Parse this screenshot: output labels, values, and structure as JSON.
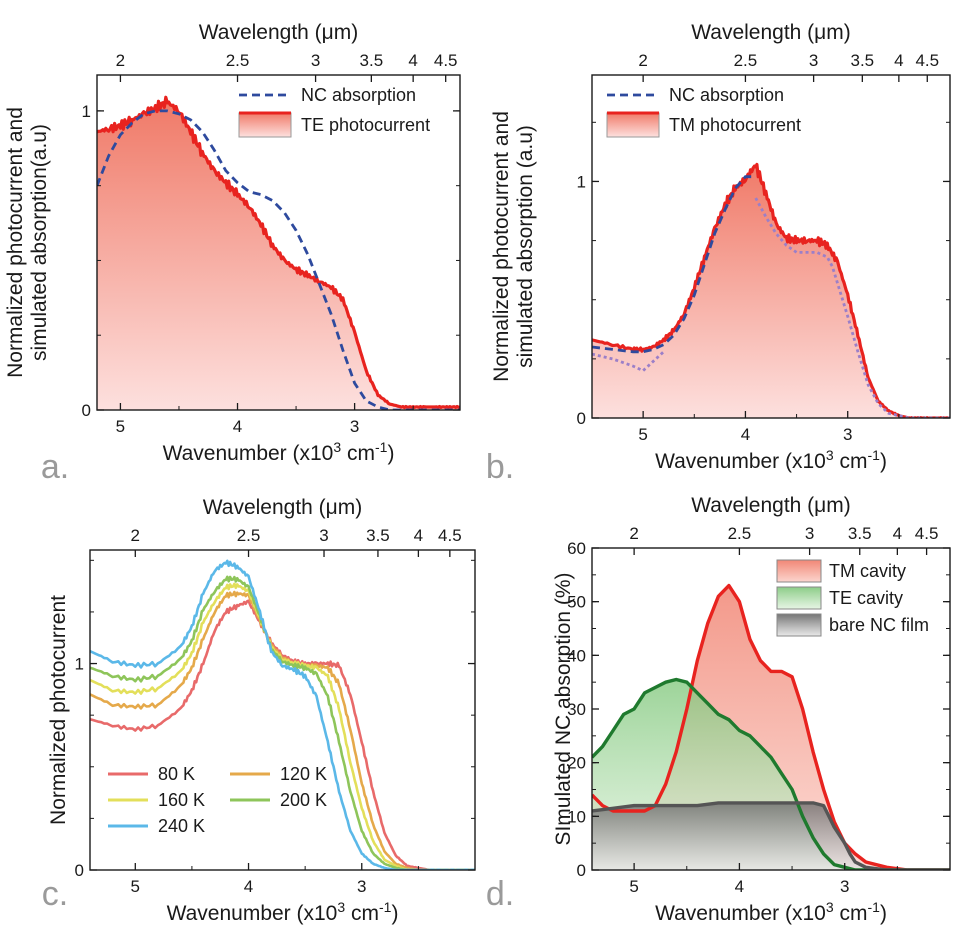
{
  "panel_labels": [
    "a.",
    "b.",
    "c.",
    "d."
  ],
  "chart_data": [
    {
      "id": "a",
      "type": "area",
      "title": "",
      "xlabel": "Wavenumber (x10^3 cm^-1)",
      "xlabel_main": "Wavenumber (x10",
      "xlabel_sup1": "3",
      "xlabel_mid": " cm",
      "xlabel_sup2": "-1",
      "xlabel_end": ")",
      "x2label": "Wavelength (μm)",
      "ylabel_lines": [
        "Normalized photocurrent and",
        "simulated absorption(a.u)"
      ],
      "xlim": [
        5.2,
        2.1
      ],
      "x_reversed": true,
      "ylim": [
        0,
        1.12
      ],
      "x_ticks": [
        5,
        4,
        3
      ],
      "x_tick_labels": [
        "5",
        "4",
        "3"
      ],
      "x2_ticks_um": [
        2,
        2.5,
        3,
        3.5,
        4,
        4.5
      ],
      "x2_tick_labels": [
        "2",
        "2.5",
        "3",
        "3.5",
        "4",
        "4.5"
      ],
      "y_ticks": [
        0,
        1
      ],
      "y_tick_labels": [
        "0",
        "1"
      ],
      "legend_position": "top-right",
      "series": [
        {
          "name": "NC absorption",
          "style": "dashed",
          "color": "#2e4a9e",
          "x": [
            5.2,
            5.1,
            5.0,
            4.9,
            4.8,
            4.7,
            4.6,
            4.5,
            4.4,
            4.3,
            4.2,
            4.1,
            4.0,
            3.9,
            3.8,
            3.7,
            3.6,
            3.5,
            3.4,
            3.3,
            3.2,
            3.1,
            3.0,
            2.9,
            2.8,
            2.7,
            2.6,
            2.5,
            2.4,
            2.3,
            2.2,
            2.1
          ],
          "y": [
            0.75,
            0.85,
            0.92,
            0.96,
            0.99,
            1.0,
            1.0,
            0.99,
            0.97,
            0.93,
            0.87,
            0.8,
            0.76,
            0.73,
            0.72,
            0.7,
            0.66,
            0.6,
            0.52,
            0.42,
            0.32,
            0.2,
            0.09,
            0.03,
            0.01,
            0.0,
            0.0,
            0.0,
            0.0,
            0.0,
            0.0,
            0.0
          ]
        },
        {
          "name": "TE photocurrent",
          "style": "filled",
          "color": "#e8231f",
          "x": [
            5.2,
            5.1,
            5.0,
            4.9,
            4.8,
            4.7,
            4.6,
            4.5,
            4.4,
            4.3,
            4.2,
            4.1,
            4.0,
            3.9,
            3.8,
            3.7,
            3.6,
            3.5,
            3.4,
            3.3,
            3.2,
            3.1,
            3.0,
            2.9,
            2.8,
            2.7,
            2.6,
            2.5,
            2.4,
            2.3,
            2.2,
            2.1
          ],
          "y": [
            0.93,
            0.94,
            0.95,
            0.97,
            0.99,
            1.01,
            1.03,
            1.0,
            0.93,
            0.86,
            0.8,
            0.76,
            0.72,
            0.68,
            0.62,
            0.55,
            0.5,
            0.47,
            0.45,
            0.43,
            0.41,
            0.37,
            0.26,
            0.13,
            0.05,
            0.02,
            0.01,
            0.01,
            0.01,
            0.01,
            0.01,
            0.01
          ]
        }
      ],
      "fill_color": "#f08a7a"
    },
    {
      "id": "b",
      "type": "area",
      "title": "",
      "xlabel_main": "Wavenumber (x10",
      "xlabel_sup1": "3",
      "xlabel_mid": " cm",
      "xlabel_sup2": "-1",
      "xlabel_end": ")",
      "x2label": "Wavelength (μm)",
      "ylabel_lines": [
        "Normalized photocurrent and",
        "simulated absorption (a.u)"
      ],
      "xlim": [
        5.5,
        2.0
      ],
      "x_reversed": true,
      "ylim": [
        0,
        1.45
      ],
      "x_ticks": [
        5,
        4,
        3
      ],
      "x_tick_labels": [
        "5",
        "4",
        "3"
      ],
      "x2_ticks_um": [
        2,
        2.5,
        3,
        3.5,
        4,
        4.5
      ],
      "x2_tick_labels": [
        "2",
        "2.5",
        "3",
        "3.5",
        "4",
        "4.5"
      ],
      "y_ticks": [
        0,
        1
      ],
      "y_tick_labels": [
        "0",
        "1"
      ],
      "legend_position": "top-left",
      "series": [
        {
          "name": "NC absorption",
          "style": "dashed",
          "color": "#2e4a9e",
          "x": [
            5.5,
            5.3,
            5.1,
            5.0,
            4.9,
            4.8,
            4.7,
            4.6,
            4.5,
            4.4,
            4.3,
            4.2,
            4.1,
            4.0,
            3.9
          ],
          "y": [
            0.3,
            0.29,
            0.28,
            0.28,
            0.29,
            0.31,
            0.35,
            0.42,
            0.52,
            0.65,
            0.78,
            0.88,
            0.97,
            1.02,
            1.02
          ]
        },
        {
          "name": "",
          "style": "dotted",
          "color": "#9b7fc8",
          "x": [
            3.9,
            3.8,
            3.7,
            3.6,
            3.5,
            3.4,
            3.3,
            3.2,
            3.15,
            3.1,
            3.0,
            2.9,
            2.8,
            2.7,
            2.6,
            2.5,
            2.4,
            2.3,
            2.2,
            2.1,
            2.0
          ],
          "y": [
            0.93,
            0.85,
            0.78,
            0.73,
            0.7,
            0.7,
            0.7,
            0.68,
            0.64,
            0.57,
            0.43,
            0.28,
            0.14,
            0.06,
            0.02,
            0.01,
            0.0,
            0.0,
            0.0,
            0.0,
            0.0
          ]
        },
        {
          "name": "",
          "style": "dotted",
          "color": "#9b7fc8",
          "x": [
            5.5,
            5.3,
            5.1,
            5.0,
            4.9,
            4.8
          ],
          "y": [
            0.27,
            0.25,
            0.22,
            0.2,
            0.24,
            0.28
          ]
        },
        {
          "name": "TM photocurrent",
          "style": "filled",
          "color": "#e8231f",
          "x": [
            5.5,
            5.3,
            5.1,
            5.0,
            4.9,
            4.8,
            4.7,
            4.6,
            4.5,
            4.4,
            4.3,
            4.2,
            4.1,
            4.0,
            3.9,
            3.8,
            3.7,
            3.6,
            3.5,
            3.4,
            3.3,
            3.2,
            3.1,
            3.0,
            2.9,
            2.8,
            2.7,
            2.6,
            2.5,
            2.4,
            2.3,
            2.2,
            2.1,
            2.0
          ],
          "y": [
            0.33,
            0.31,
            0.29,
            0.29,
            0.3,
            0.33,
            0.37,
            0.44,
            0.55,
            0.68,
            0.8,
            0.9,
            0.97,
            1.01,
            1.07,
            0.95,
            0.82,
            0.76,
            0.75,
            0.75,
            0.75,
            0.73,
            0.66,
            0.52,
            0.35,
            0.17,
            0.07,
            0.03,
            0.01,
            0.0,
            0.0,
            0.0,
            0.0,
            0.0
          ]
        }
      ],
      "fill_color": "#f08a7a"
    },
    {
      "id": "c",
      "type": "line",
      "title": "",
      "xlabel_main": "Wavenumber (x10",
      "xlabel_sup1": "3",
      "xlabel_mid": " cm",
      "xlabel_sup2": "-1",
      "xlabel_end": ")",
      "x2label": "Wavelength (μm)",
      "ylabel_lines": [
        "Normalized photocurrent"
      ],
      "xlim": [
        5.4,
        2.0
      ],
      "x_reversed": true,
      "ylim": [
        0,
        1.55
      ],
      "x_ticks": [
        5,
        4,
        3
      ],
      "x_tick_labels": [
        "5",
        "4",
        "3"
      ],
      "x2_ticks_um": [
        2,
        2.5,
        3,
        3.5,
        4,
        4.5
      ],
      "x2_tick_labels": [
        "2",
        "2.5",
        "3",
        "3.5",
        "4",
        "4.5"
      ],
      "y_ticks": [
        0,
        1
      ],
      "y_tick_labels": [
        "0",
        "1"
      ],
      "legend_position": "bottom-left",
      "x": [
        5.4,
        5.2,
        5.0,
        4.8,
        4.6,
        4.5,
        4.4,
        4.3,
        4.2,
        4.1,
        4.0,
        3.9,
        3.8,
        3.7,
        3.6,
        3.5,
        3.4,
        3.3,
        3.2,
        3.1,
        3.0,
        2.9,
        2.8,
        2.7,
        2.6,
        2.5,
        2.4,
        2.2,
        2.0
      ],
      "series": [
        {
          "name": "80 K",
          "color": "#e86a6a",
          "y": [
            0.73,
            0.7,
            0.68,
            0.7,
            0.78,
            0.87,
            1.0,
            1.16,
            1.25,
            1.28,
            1.3,
            1.2,
            1.1,
            1.04,
            1.01,
            1.0,
            1.0,
            1.0,
            0.99,
            0.85,
            0.62,
            0.38,
            0.18,
            0.07,
            0.02,
            0.01,
            0.0,
            0.0,
            0.0
          ]
        },
        {
          "name": "120 K",
          "color": "#e5a94a",
          "y": [
            0.85,
            0.8,
            0.79,
            0.8,
            0.89,
            0.98,
            1.12,
            1.25,
            1.33,
            1.34,
            1.33,
            1.21,
            1.09,
            1.03,
            1.0,
            0.99,
            0.99,
            0.98,
            0.9,
            0.68,
            0.42,
            0.22,
            0.09,
            0.03,
            0.01,
            0.0,
            0.0,
            0.0,
            0.0
          ]
        },
        {
          "name": "160 K",
          "color": "#e3df5a",
          "y": [
            0.92,
            0.87,
            0.86,
            0.88,
            0.96,
            1.05,
            1.2,
            1.3,
            1.37,
            1.38,
            1.35,
            1.22,
            1.08,
            1.02,
            1.0,
            0.99,
            0.98,
            0.94,
            0.78,
            0.52,
            0.3,
            0.14,
            0.05,
            0.02,
            0.0,
            0.0,
            0.0,
            0.0,
            0.0
          ]
        },
        {
          "name": "200 K",
          "color": "#8ec55a",
          "y": [
            0.98,
            0.94,
            0.92,
            0.94,
            1.02,
            1.11,
            1.26,
            1.35,
            1.41,
            1.41,
            1.37,
            1.23,
            1.07,
            1.01,
            0.99,
            0.98,
            0.95,
            0.84,
            0.62,
            0.38,
            0.19,
            0.08,
            0.03,
            0.01,
            0.0,
            0.0,
            0.0,
            0.0,
            0.0
          ]
        },
        {
          "name": "240 K",
          "color": "#5bb8e8",
          "y": [
            1.06,
            1.01,
            0.99,
            1.0,
            1.08,
            1.18,
            1.34,
            1.45,
            1.49,
            1.47,
            1.42,
            1.25,
            1.06,
            0.99,
            0.97,
            0.94,
            0.84,
            0.62,
            0.38,
            0.19,
            0.08,
            0.03,
            0.01,
            0.0,
            0.0,
            0.0,
            0.0,
            0.0,
            0.0
          ]
        }
      ]
    },
    {
      "id": "d",
      "type": "area",
      "title": "",
      "xlabel_main": "Wavenumber (x10",
      "xlabel_sup1": "3",
      "xlabel_mid": " cm",
      "xlabel_sup2": "-1",
      "xlabel_end": ")",
      "x2label": "Wavelength (μm)",
      "ylabel_lines": [
        "SImulated NC absorption (%)"
      ],
      "xlim": [
        5.4,
        2.0
      ],
      "x_reversed": true,
      "ylim": [
        0,
        60
      ],
      "x_ticks": [
        5,
        4,
        3
      ],
      "x_tick_labels": [
        "5",
        "4",
        "3"
      ],
      "x2_ticks_um": [
        2,
        2.5,
        3,
        3.5,
        4,
        4.5
      ],
      "x2_tick_labels": [
        "2",
        "2.5",
        "3",
        "3.5",
        "4",
        "4.5"
      ],
      "y_ticks": [
        0,
        10,
        20,
        30,
        40,
        50,
        60
      ],
      "y_tick_labels": [
        "0",
        "10",
        "20",
        "30",
        "40",
        "50",
        "60"
      ],
      "legend_position": "top-right",
      "series": [
        {
          "name": "TM cavity",
          "color": "#e8231f",
          "fill": "#f0897a",
          "x": [
            5.4,
            5.3,
            5.2,
            5.1,
            5.0,
            4.9,
            4.8,
            4.7,
            4.6,
            4.5,
            4.4,
            4.3,
            4.2,
            4.1,
            4.0,
            3.9,
            3.8,
            3.7,
            3.6,
            3.5,
            3.4,
            3.3,
            3.2,
            3.1,
            3.0,
            2.9,
            2.8,
            2.6,
            2.4,
            2.2,
            2.0
          ],
          "y": [
            14,
            12,
            11,
            11,
            11,
            11,
            12,
            16,
            22,
            30,
            39,
            46,
            51,
            53,
            50,
            43,
            39,
            37,
            37,
            36,
            30,
            22,
            15,
            9,
            5,
            3,
            1.5,
            0.5,
            0,
            0,
            0
          ]
        },
        {
          "name": "TE cavity",
          "color": "#1f7a2e",
          "fill": "#9fd39a",
          "x": [
            5.4,
            5.3,
            5.2,
            5.1,
            5.0,
            4.9,
            4.8,
            4.7,
            4.6,
            4.5,
            4.4,
            4.3,
            4.2,
            4.1,
            4.0,
            3.9,
            3.8,
            3.7,
            3.6,
            3.5,
            3.4,
            3.3,
            3.2,
            3.1,
            3.0,
            2.9,
            2.8,
            2.6,
            2.4,
            2.2,
            2.0
          ],
          "y": [
            21,
            23,
            26,
            29,
            30,
            33,
            34,
            35,
            35.5,
            35,
            33,
            31,
            29,
            28,
            26,
            25,
            23,
            21,
            18,
            15,
            10,
            6,
            3,
            1,
            0.5,
            0,
            0,
            0,
            0,
            0,
            0
          ]
        },
        {
          "name": "bare NC film",
          "color": "#555555",
          "fill": "#9a9a9a",
          "x": [
            5.4,
            5.2,
            5.0,
            4.8,
            4.6,
            4.4,
            4.2,
            4.0,
            3.8,
            3.6,
            3.4,
            3.3,
            3.2,
            3.15,
            3.1,
            3.0,
            2.95,
            2.9,
            2.8,
            2.6,
            2.4,
            2.2,
            2.0
          ],
          "y": [
            11,
            11.5,
            12,
            12,
            12,
            12,
            12.5,
            12.5,
            12.5,
            12.5,
            12.5,
            12.5,
            12,
            10,
            8,
            5,
            3,
            1.5,
            0.5,
            0,
            0,
            0,
            0
          ]
        }
      ]
    }
  ]
}
